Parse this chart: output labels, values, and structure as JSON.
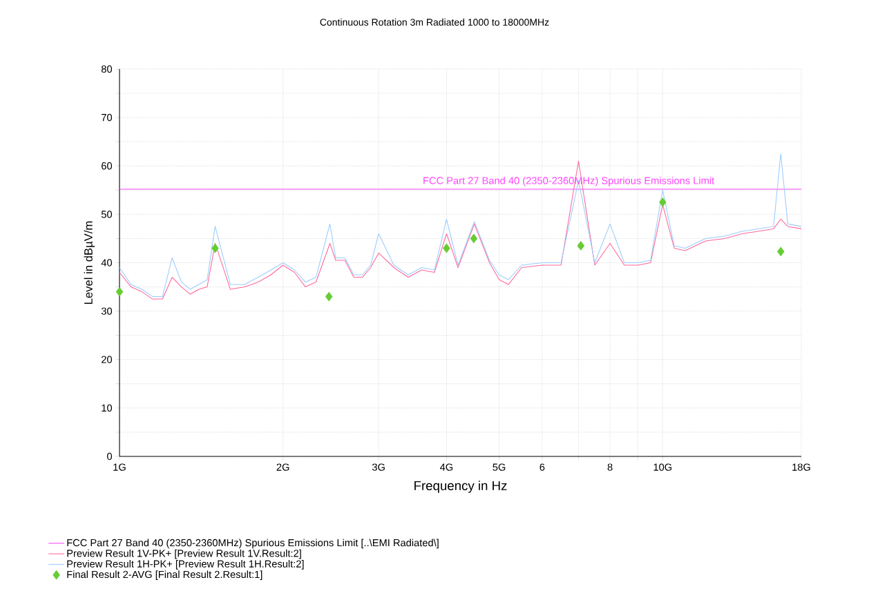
{
  "chart_data": {
    "type": "line",
    "title": "Continuous Rotation 3m Radiated 1000 to 18000MHz",
    "xlabel": "Frequency in Hz",
    "ylabel": "Level in dBµV/m",
    "log": "x",
    "grid": true,
    "legend": "bottom",
    "xlim": [
      1,
      18
    ],
    "ylim": [
      0,
      80
    ],
    "xticks": [
      {
        "value": 1,
        "label": "1G"
      },
      {
        "value": 2,
        "label": "2G"
      },
      {
        "value": 3,
        "label": "3G"
      },
      {
        "value": 4,
        "label": "4G"
      },
      {
        "value": 5,
        "label": "5G"
      },
      6,
      {
        "value": 7,
        "label": null
      },
      8,
      {
        "value": 9,
        "label": null
      },
      {
        "value": 10,
        "label": "10G"
      },
      {
        "value": 18,
        "label": "18G"
      }
    ],
    "yticks": [
      0,
      {
        "value": 5,
        "label": null
      },
      10,
      {
        "value": 15,
        "label": null
      },
      20,
      {
        "value": 25,
        "label": null
      },
      30,
      {
        "value": 35,
        "label": null
      },
      40,
      {
        "value": 45,
        "label": null
      },
      50,
      {
        "value": 55,
        "label": null
      },
      60,
      {
        "value": 65,
        "label": null
      },
      70,
      {
        "value": 75,
        "label": null
      },
      80
    ],
    "annotations": [
      {
        "text": "FCC Part 27 Band 40 (2350-2360MHz) Spurious Emissions Limit",
        "x": 3.6,
        "y": 55.2
      }
    ],
    "series": [
      {
        "name": "FCC Part 27 Band 40 (2350-2360MHz) Spurious Emissions Limit   [..\\EMI Radiated\\]",
        "color": "#ff44ff",
        "x": [
          1,
          18
        ],
        "values": [
          55.2,
          55.2
        ]
      },
      {
        "name": "Preview Result 1V-PK+   [Preview Result 1V.Result:2]",
        "color": "#ff6699",
        "x": [
          1.0,
          1.05,
          1.1,
          1.15,
          1.2,
          1.25,
          1.3,
          1.35,
          1.4,
          1.45,
          1.5,
          1.6,
          1.7,
          1.8,
          1.9,
          2.0,
          2.1,
          2.2,
          2.3,
          2.44,
          2.5,
          2.6,
          2.7,
          2.8,
          2.9,
          3.0,
          3.2,
          3.4,
          3.6,
          3.8,
          4.0,
          4.2,
          4.5,
          4.8,
          5.0,
          5.2,
          5.5,
          6.0,
          6.5,
          7.0,
          7.5,
          8.0,
          8.5,
          9.0,
          9.5,
          10.0,
          10.5,
          11,
          12,
          13,
          14,
          15,
          16,
          16.5,
          17,
          18
        ],
        "values": [
          38,
          35,
          34,
          32.5,
          32.5,
          37,
          35,
          33.5,
          34.5,
          35,
          44,
          34.5,
          35,
          36,
          37.5,
          39.5,
          38,
          35,
          36,
          44,
          40.5,
          40.5,
          37,
          37,
          39,
          42,
          39,
          37,
          38.5,
          38,
          46,
          39,
          48,
          40,
          36.5,
          35.5,
          39,
          39.5,
          39.5,
          61,
          39.5,
          44,
          39.5,
          39.5,
          40,
          52,
          43,
          42.5,
          44.5,
          45,
          46,
          46.5,
          47,
          49,
          47.5,
          47
        ]
      },
      {
        "name": "Preview Result 1H-PK+   [Preview Result 1H.Result:2]",
        "color": "#99ccff",
        "x": [
          1.0,
          1.05,
          1.1,
          1.15,
          1.2,
          1.25,
          1.3,
          1.35,
          1.4,
          1.45,
          1.5,
          1.6,
          1.7,
          1.8,
          1.9,
          2.0,
          2.1,
          2.2,
          2.3,
          2.44,
          2.5,
          2.6,
          2.7,
          2.8,
          2.9,
          3.0,
          3.2,
          3.4,
          3.6,
          3.8,
          4.0,
          4.2,
          4.5,
          4.8,
          5.0,
          5.2,
          5.5,
          6.0,
          6.5,
          7.0,
          7.5,
          8.0,
          8.5,
          9.0,
          9.5,
          10.0,
          10.5,
          11,
          12,
          13,
          14,
          15,
          16,
          16.5,
          17,
          18
        ],
        "values": [
          39,
          35.5,
          34.5,
          33,
          33,
          41,
          36,
          34.5,
          35.5,
          36.5,
          47.5,
          35.5,
          35.5,
          37,
          38.5,
          40,
          38.5,
          36,
          37,
          48,
          41,
          41,
          37.5,
          37.5,
          39.5,
          46,
          39.5,
          37.5,
          39,
          38.5,
          49,
          39.5,
          48.5,
          40.5,
          37.5,
          36.5,
          39.5,
          40,
          40,
          57,
          40,
          48,
          40,
          40,
          40.5,
          55,
          43.5,
          43,
          45,
          45.5,
          46.5,
          47,
          47.5,
          62.5,
          48,
          47.5
        ]
      },
      {
        "name": "Final Result 2-AVG   [Final Result 2.Result:1]",
        "type": "scatter",
        "color": "#66cc33",
        "marker": "diamond",
        "x": [
          1.0,
          1.5,
          2.43,
          4.0,
          4.49,
          7.07,
          10.0,
          16.5
        ],
        "values": [
          34,
          43,
          33,
          43,
          45,
          43.5,
          52.5,
          42.3
        ]
      }
    ]
  }
}
